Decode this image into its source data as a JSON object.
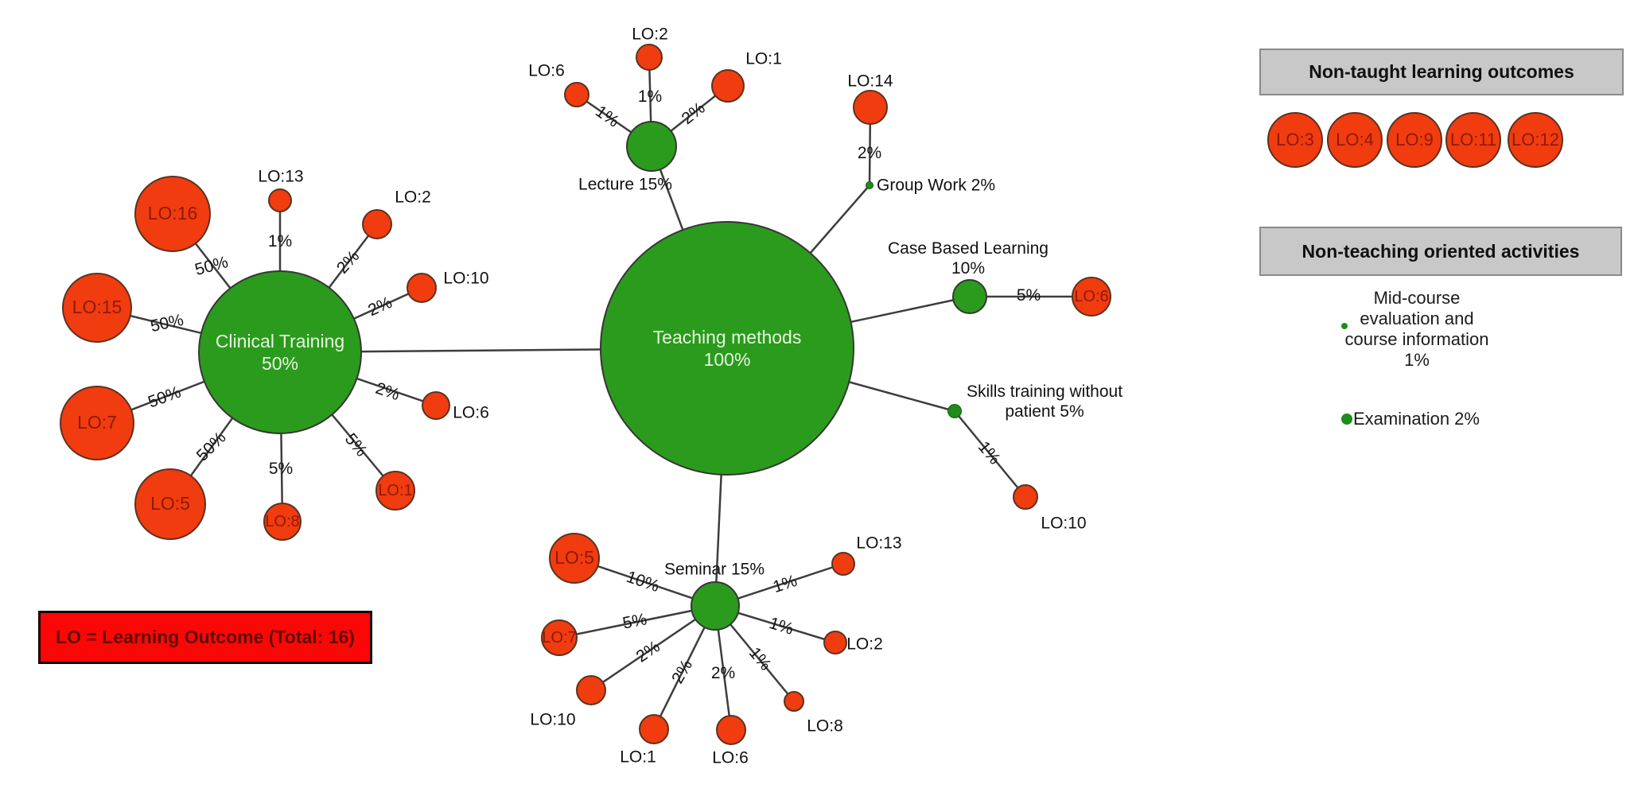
{
  "colors": {
    "method_green": "#2b9b1d",
    "outcome_red": "#f13c10",
    "legend_red": "#fb0707",
    "header_gray": "#c8c8c8"
  },
  "legend": {
    "text": "LO = Learning Outcome (Total: 16)"
  },
  "panels": {
    "non_taught": {
      "title": "Non-taught learning outcomes",
      "items": [
        "LO:3",
        "LO:4",
        "LO:9",
        "LO:11",
        "LO:12"
      ]
    },
    "non_teaching": {
      "title": "Non-teaching oriented activities",
      "activities": [
        {
          "lines": [
            "Mid-course",
            "evaluation and",
            "course information",
            "1%"
          ]
        },
        {
          "lines": [
            "Examination 2%"
          ]
        }
      ]
    }
  },
  "graph": {
    "nodes": [
      {
        "id": "teaching",
        "lines": [
          "Teaching methods",
          "100%"
        ]
      },
      {
        "id": "clinical",
        "lines": [
          "Clinical Training 50%"
        ]
      },
      {
        "id": "lecture",
        "lines": [
          "Lecture 15%"
        ]
      },
      {
        "id": "seminar",
        "lines": [
          "Seminar 15%"
        ]
      },
      {
        "id": "groupwork",
        "lines": [
          "Group Work 2%"
        ]
      },
      {
        "id": "cbl",
        "lines": [
          "Case Based Learning",
          "10%"
        ]
      },
      {
        "id": "skills",
        "lines": [
          "Skills training without",
          "patient 5%"
        ]
      },
      {
        "id": "lec-lo6",
        "lines": [
          "LO:6"
        ]
      },
      {
        "id": "lec-lo2",
        "lines": [
          "LO:2"
        ]
      },
      {
        "id": "lec-lo1",
        "lines": [
          "LO:1"
        ]
      },
      {
        "id": "gw-lo14",
        "lines": [
          "LO:14"
        ]
      },
      {
        "id": "cbl-lo6",
        "lines": [
          "LO:6"
        ]
      },
      {
        "id": "sk-lo10",
        "lines": [
          "LO:10"
        ]
      },
      {
        "id": "cli-lo16",
        "lines": [
          "LO:16"
        ]
      },
      {
        "id": "cli-lo13",
        "lines": [
          "LO:13"
        ]
      },
      {
        "id": "cli-lo2",
        "lines": [
          "LO:2"
        ]
      },
      {
        "id": "cli-lo10",
        "lines": [
          "LO:10"
        ]
      },
      {
        "id": "cli-lo15",
        "lines": [
          "LO:15"
        ]
      },
      {
        "id": "cli-lo7",
        "lines": [
          "LO:7"
        ]
      },
      {
        "id": "cli-lo6",
        "lines": [
          "LO:6"
        ]
      },
      {
        "id": "cli-lo5",
        "lines": [
          "LO:5"
        ]
      },
      {
        "id": "cli-lo8",
        "lines": [
          "LO:8"
        ]
      },
      {
        "id": "cli-lo1",
        "lines": [
          "LO:1"
        ]
      },
      {
        "id": "sem-lo5",
        "lines": [
          "LO:5"
        ]
      },
      {
        "id": "sem-lo7",
        "lines": [
          "LO:7"
        ]
      },
      {
        "id": "sem-lo10",
        "lines": [
          "LO:10"
        ]
      },
      {
        "id": "sem-lo1",
        "lines": [
          "LO:1"
        ]
      },
      {
        "id": "sem-lo6",
        "lines": [
          "LO:6"
        ]
      },
      {
        "id": "sem-lo8",
        "lines": [
          "LO:8"
        ]
      },
      {
        "id": "sem-lo2",
        "lines": [
          "LO:2"
        ]
      },
      {
        "id": "sem-lo13",
        "lines": [
          "LO:13"
        ]
      }
    ],
    "edges": [
      {
        "from": "teaching",
        "to": "clinical",
        "label": ""
      },
      {
        "from": "teaching",
        "to": "lecture",
        "label": ""
      },
      {
        "from": "teaching",
        "to": "seminar",
        "label": ""
      },
      {
        "from": "teaching",
        "to": "groupwork",
        "label": ""
      },
      {
        "from": "teaching",
        "to": "cbl",
        "label": ""
      },
      {
        "from": "teaching",
        "to": "skills",
        "label": ""
      },
      {
        "from": "lecture",
        "to": "lec-lo6",
        "label": "1%"
      },
      {
        "from": "lecture",
        "to": "lec-lo2",
        "label": "1%"
      },
      {
        "from": "lecture",
        "to": "lec-lo1",
        "label": "2%"
      },
      {
        "from": "groupwork",
        "to": "gw-lo14",
        "label": "2%"
      },
      {
        "from": "cbl",
        "to": "cbl-lo6",
        "label": "5%"
      },
      {
        "from": "skills",
        "to": "sk-lo10",
        "label": "1%"
      },
      {
        "from": "clinical",
        "to": "cli-lo16",
        "label": "50%"
      },
      {
        "from": "clinical",
        "to": "cli-lo13",
        "label": "1%"
      },
      {
        "from": "clinical",
        "to": "cli-lo2",
        "label": "2%"
      },
      {
        "from": "clinical",
        "to": "cli-lo10",
        "label": "2%"
      },
      {
        "from": "clinical",
        "to": "cli-lo15",
        "label": "50%"
      },
      {
        "from": "clinical",
        "to": "cli-lo7",
        "label": "50%"
      },
      {
        "from": "clinical",
        "to": "cli-lo6",
        "label": "2%"
      },
      {
        "from": "clinical",
        "to": "cli-lo5",
        "label": "50%"
      },
      {
        "from": "clinical",
        "to": "cli-lo8",
        "label": "5%"
      },
      {
        "from": "clinical",
        "to": "cli-lo1",
        "label": "5%"
      },
      {
        "from": "seminar",
        "to": "sem-lo5",
        "label": "10%"
      },
      {
        "from": "seminar",
        "to": "sem-lo7",
        "label": "5%"
      },
      {
        "from": "seminar",
        "to": "sem-lo10",
        "label": "2%"
      },
      {
        "from": "seminar",
        "to": "sem-lo1",
        "label": "2%"
      },
      {
        "from": "seminar",
        "to": "sem-lo6",
        "label": "2%"
      },
      {
        "from": "seminar",
        "to": "sem-lo8",
        "label": "1%"
      },
      {
        "from": "seminar",
        "to": "sem-lo2",
        "label": "1%"
      },
      {
        "from": "seminar",
        "to": "sem-lo13",
        "label": "1%"
      }
    ]
  }
}
